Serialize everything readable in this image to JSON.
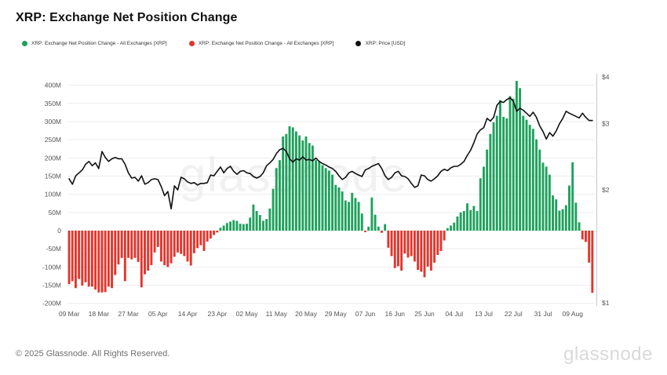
{
  "header": {
    "title": "XRP: Exchange Net Position Change"
  },
  "legend": [
    {
      "label": "XRP: Exchange Net Position Change - All Exchanges [XRP]",
      "color": "#1fa15c"
    },
    {
      "label": "XRP: Exchange Net Position Change - All Exchanges [XRP]",
      "color": "#e5342b"
    },
    {
      "label": "XRP: Price [USD]",
      "color": "#111111"
    }
  ],
  "watermark": "glassnode",
  "footer": {
    "copyright": "© 2025 Glassnode. All Rights Reserved.",
    "logo_text": "glassnode"
  },
  "chart_data": {
    "type": "bar+line",
    "title": "XRP: Exchange Net Position Change",
    "grid": "horizontal",
    "x_start_date": "09 Mar",
    "x_end_date": "15 Aug",
    "x_tick_every_days": 9,
    "x_tick_labels": [
      "09 Mar",
      "18 Mar",
      "27 Mar",
      "05 Apr",
      "14 Apr",
      "23 Apr",
      "02 May",
      "11 May",
      "20 May",
      "29 May",
      "07 Jun",
      "16 Jun",
      "25 Jun",
      "04 Jul",
      "13 Jul",
      "22 Jul",
      "31 Jul",
      "09 Aug"
    ],
    "y_left_axis": {
      "unit": "XRP (millions)",
      "tick_labels": [
        "400M",
        "350M",
        "300M",
        "250M",
        "200M",
        "150M",
        "100M",
        "50M",
        "0",
        "-50M",
        "-100M",
        "-150M",
        "-200M"
      ],
      "tick_values": [
        400,
        350,
        300,
        250,
        200,
        150,
        100,
        50,
        0,
        -50,
        -100,
        -150,
        -200
      ],
      "range": [
        -220,
        420
      ]
    },
    "y_right_axis": {
      "unit": "USD",
      "scale": "log",
      "tick_labels": [
        "$4",
        "$3",
        "$2",
        "$1"
      ],
      "tick_values": [
        4,
        3,
        2,
        1
      ],
      "range": [
        1,
        4.2
      ]
    },
    "colors": {
      "positive": "#1fa15c",
      "negative": "#e5342b",
      "price": "#111111",
      "grid": "#ededed",
      "axis_text": "#555555",
      "right_spine": "#c9c9c9"
    },
    "series": [
      {
        "name": "XRP: Exchange Net Position Change - All Exchanges [XRP]",
        "type": "bar",
        "unit": "M XRP",
        "values": [
          -147,
          -139,
          -158,
          -133,
          -151,
          -142,
          -154,
          -154,
          -162,
          -170,
          -170,
          -169,
          -154,
          -158,
          -122,
          -93,
          -75,
          -139,
          -75,
          -79,
          -75,
          -86,
          -156,
          -120,
          -110,
          -95,
          -60,
          -45,
          -85,
          -95,
          -100,
          -90,
          -72,
          -60,
          -64,
          -70,
          -85,
          -96,
          -62,
          -48,
          -40,
          -56,
          -30,
          -22,
          -12,
          -5,
          8,
          14,
          21,
          25,
          29,
          27,
          19,
          18,
          19,
          36,
          72,
          54,
          43,
          27,
          32,
          61,
          115,
          172,
          194,
          259,
          266,
          287,
          284,
          273,
          262,
          248,
          259,
          241,
          234,
          194,
          190,
          180,
          172,
          165,
          154,
          126,
          119,
          108,
          83,
          79,
          104,
          90,
          79,
          47,
          -4,
          11,
          91,
          44,
          11,
          -6,
          18,
          -47,
          -70,
          -103,
          -98,
          -110,
          -63,
          -74,
          -70,
          -85,
          -108,
          -113,
          -128,
          -99,
          -110,
          -88,
          -67,
          -56,
          -27,
          7,
          14,
          22,
          39,
          50,
          54,
          75,
          57,
          68,
          54,
          144,
          176,
          223,
          266,
          298,
          316,
          359,
          313,
          309,
          370,
          363,
          412,
          392,
          316,
          305,
          291,
          280,
          251,
          223,
          187,
          176,
          154,
          97,
          86,
          55,
          59,
          70,
          124,
          188,
          77,
          23,
          -24,
          -31,
          -88,
          -171
        ]
      },
      {
        "name": "XRP: Price [USD]",
        "type": "line",
        "unit": "USD",
        "values": [
          2.14,
          2.07,
          2.18,
          2.22,
          2.26,
          2.34,
          2.38,
          2.32,
          2.36,
          2.28,
          2.53,
          2.44,
          2.38,
          2.42,
          2.44,
          2.42,
          2.42,
          2.34,
          2.22,
          2.15,
          2.16,
          2.11,
          2.18,
          2.07,
          2.09,
          2.13,
          2.14,
          2.13,
          2.04,
          1.93,
          1.98,
          1.78,
          2.05,
          2.0,
          2.16,
          2.14,
          2.1,
          2.08,
          2.09,
          2.06,
          2.08,
          2.08,
          2.09,
          2.19,
          2.18,
          2.24,
          2.3,
          2.22,
          2.28,
          2.31,
          2.24,
          2.2,
          2.24,
          2.25,
          2.22,
          2.21,
          2.17,
          2.15,
          2.17,
          2.22,
          2.32,
          2.36,
          2.41,
          2.5,
          2.56,
          2.58,
          2.53,
          2.42,
          2.37,
          2.42,
          2.4,
          2.45,
          2.4,
          2.41,
          2.39,
          2.43,
          2.38,
          2.35,
          2.33,
          2.3,
          2.28,
          2.24,
          2.18,
          2.13,
          2.16,
          2.22,
          2.24,
          2.21,
          2.19,
          2.17,
          2.26,
          2.28,
          2.31,
          2.33,
          2.35,
          2.28,
          2.18,
          2.13,
          2.16,
          2.22,
          2.24,
          2.18,
          2.17,
          2.14,
          2.08,
          2.03,
          2.05,
          2.19,
          2.18,
          2.13,
          2.11,
          2.14,
          2.18,
          2.24,
          2.27,
          2.25,
          2.29,
          2.31,
          2.31,
          2.34,
          2.38,
          2.47,
          2.55,
          2.67,
          2.82,
          2.89,
          2.93,
          3.1,
          3.05,
          3.12,
          3.36,
          3.44,
          3.42,
          3.48,
          3.52,
          3.44,
          3.24,
          3.3,
          3.26,
          3.2,
          3.14,
          3.22,
          3.12,
          2.96,
          2.86,
          2.73,
          2.84,
          2.78,
          2.87,
          3.0,
          3.1,
          3.24,
          3.2,
          3.17,
          3.14,
          3.11,
          3.2,
          3.12,
          3.06,
          3.06
        ]
      }
    ]
  }
}
